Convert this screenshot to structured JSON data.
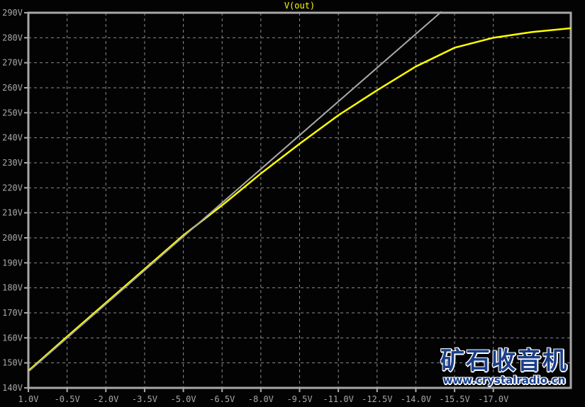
{
  "chart_data": {
    "type": "line",
    "title": "V(out)",
    "xlabel": "",
    "ylabel": "",
    "xlim": [
      1.0,
      -20.0
    ],
    "ylim": [
      140,
      290
    ],
    "grid": true,
    "x_ticks": [
      "1.0V",
      "-0.5V",
      "-2.0V",
      "-3.5V",
      "-5.0V",
      "-6.5V",
      "-8.0V",
      "-9.5V",
      "-11.0V",
      "-12.5V",
      "-14.0V",
      "-15.5V",
      "-17.0V"
    ],
    "x_tick_values": [
      1.0,
      -0.5,
      -2.0,
      -3.5,
      -5.0,
      -6.5,
      -8.0,
      -9.5,
      -11.0,
      -12.5,
      -14.0,
      -15.5,
      -17.0
    ],
    "y_ticks": [
      "140V",
      "150V",
      "160V",
      "170V",
      "180V",
      "190V",
      "200V",
      "210V",
      "220V",
      "230V",
      "240V",
      "250V",
      "260V",
      "270V",
      "280V",
      "290V"
    ],
    "y_tick_values": [
      140,
      150,
      160,
      170,
      180,
      190,
      200,
      210,
      220,
      230,
      240,
      250,
      260,
      270,
      280,
      290
    ],
    "series": [
      {
        "name": "V(out)",
        "color": "#ffff00",
        "x": [
          1.0,
          -0.5,
          -2.0,
          -3.5,
          -5.0,
          -6.5,
          -8.0,
          -9.5,
          -11.0,
          -12.5,
          -14.0,
          -15.5,
          -17.0,
          -18.5,
          -20.0
        ],
        "y": [
          146.8,
          160.5,
          174,
          187.5,
          201,
          213,
          225.7,
          237.6,
          249,
          259,
          268.5,
          276,
          280,
          282.3,
          283.8
        ]
      },
      {
        "color": "#a8a8a8",
        "x": [
          1.0,
          -15.0
        ],
        "y": [
          146.5,
          290.5
        ]
      }
    ]
  },
  "watermark": {
    "cn": "矿石收音机",
    "url": "www.crystalradio.cn"
  }
}
